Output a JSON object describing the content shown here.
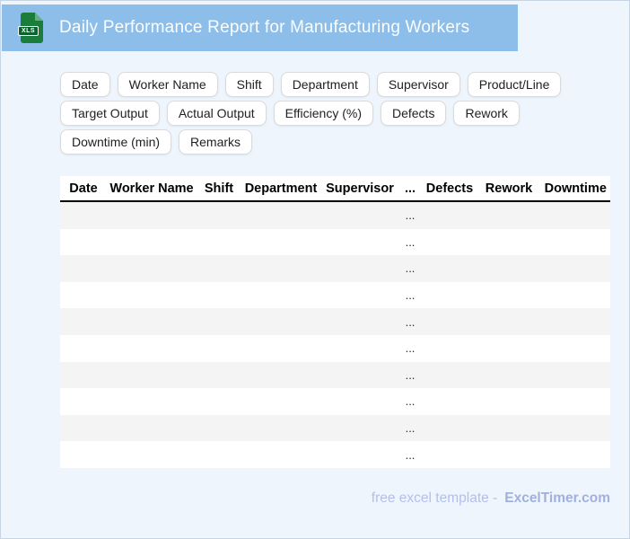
{
  "header": {
    "title": "Daily Performance Report for Manufacturing Workers",
    "file_icon_label": "XLS",
    "bar_color": "#8dbee9",
    "icon_body_color": "#1a7d3b",
    "icon_fold_color": "#63b080",
    "icon_band_color": "#0c6330"
  },
  "chips": [
    "Date",
    "Worker Name",
    "Shift",
    "Department",
    "Supervisor",
    "Product/Line",
    "Target Output",
    "Actual Output",
    "Efficiency (%)",
    "Defects",
    "Rework",
    "Downtime (min)",
    "Remarks"
  ],
  "table": {
    "columns": [
      "Date",
      "Worker Name",
      "Shift",
      "Department",
      "Supervisor",
      "...",
      "Defects",
      "Rework",
      "Downtime (min)"
    ],
    "rows": [
      [
        "",
        "",
        "",
        "",
        "",
        "...",
        "",
        "",
        ""
      ],
      [
        "",
        "",
        "",
        "",
        "",
        "...",
        "",
        "",
        ""
      ],
      [
        "",
        "",
        "",
        "",
        "",
        "...",
        "",
        "",
        ""
      ],
      [
        "",
        "",
        "",
        "",
        "",
        "...",
        "",
        "",
        ""
      ],
      [
        "",
        "",
        "",
        "",
        "",
        "...",
        "",
        "",
        ""
      ],
      [
        "",
        "",
        "",
        "",
        "",
        "...",
        "",
        "",
        ""
      ],
      [
        "",
        "",
        "",
        "",
        "",
        "...",
        "",
        "",
        ""
      ],
      [
        "",
        "",
        "",
        "",
        "",
        "...",
        "",
        "",
        ""
      ],
      [
        "",
        "",
        "",
        "",
        "",
        "...",
        "",
        "",
        ""
      ],
      [
        "",
        "",
        "",
        "",
        "",
        "...",
        "",
        "",
        ""
      ]
    ]
  },
  "footer": {
    "prefix": "free excel template -",
    "brand": "ExcelTimer.com",
    "prefix_color": "#b2c0ea",
    "brand_color": "#a1b0de"
  },
  "colors": {
    "page_background": "#eef5fd",
    "page_border": "#c6d4e4",
    "row_alt": "#f4f4f4",
    "row_main": "#ffffff"
  }
}
